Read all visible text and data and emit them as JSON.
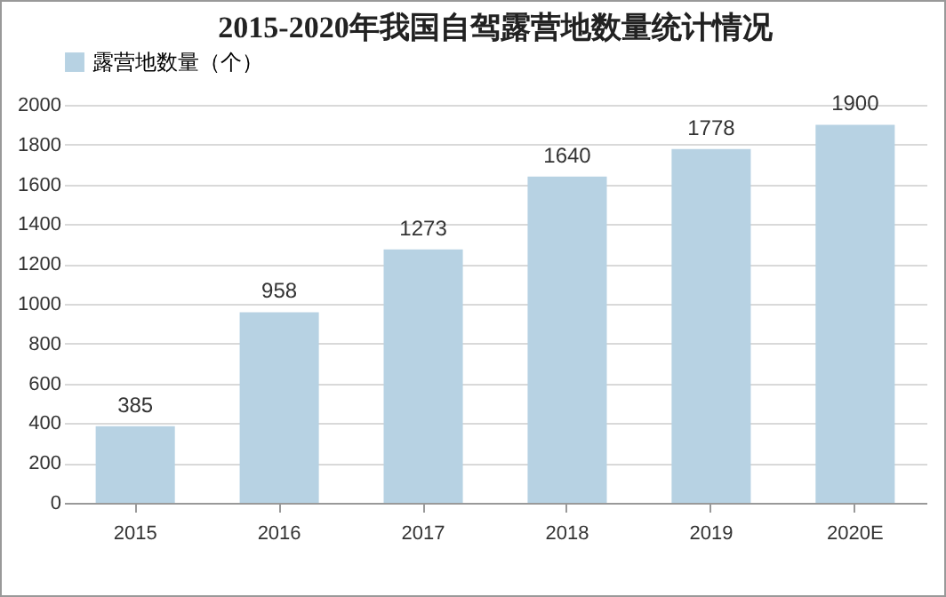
{
  "chart_data": {
    "type": "bar",
    "title": "2015-2020年我国自驾露营地数量统计情况",
    "categories": [
      "2015",
      "2016",
      "2017",
      "2018",
      "2019",
      "2020E"
    ],
    "series": [
      {
        "name": "露营地数量（个）",
        "color": "#b7d2e3",
        "values": [
          385,
          958,
          1273,
          1640,
          1778,
          1900
        ]
      }
    ],
    "ylim": [
      0,
      2000
    ],
    "yticks": [
      0,
      200,
      400,
      600,
      800,
      1000,
      1200,
      1400,
      1600,
      1800,
      2000
    ],
    "grid": "y",
    "legend": "top",
    "data_labels": true
  }
}
